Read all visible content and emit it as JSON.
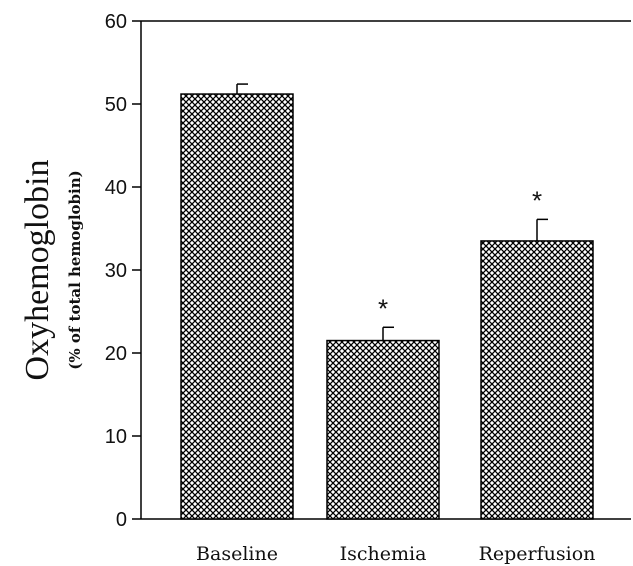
{
  "chart_data": {
    "type": "bar",
    "categories": [
      "Baseline",
      "Ischemia",
      "Reperfusion"
    ],
    "values": [
      51.2,
      21.5,
      33.5
    ],
    "errors": [
      1.2,
      1.6,
      2.6
    ],
    "annotations": [
      "",
      "*",
      "*"
    ],
    "title": "",
    "ylabel": "Oxyhemoglobin",
    "ylabel_sub": "(% of total hemoglobin)",
    "xlabel": "",
    "ylim": [
      0,
      60
    ],
    "yticks": [
      0,
      10,
      20,
      30,
      40,
      50,
      60
    ],
    "ytick_labels": [
      "0",
      "10",
      "20",
      "30",
      "40",
      "50",
      "60"
    ],
    "grid": false,
    "bar_fill": "crosshatch",
    "colors": {
      "bar_stroke": "#000000",
      "hatch": "#000000",
      "background": "#ffffff"
    }
  }
}
